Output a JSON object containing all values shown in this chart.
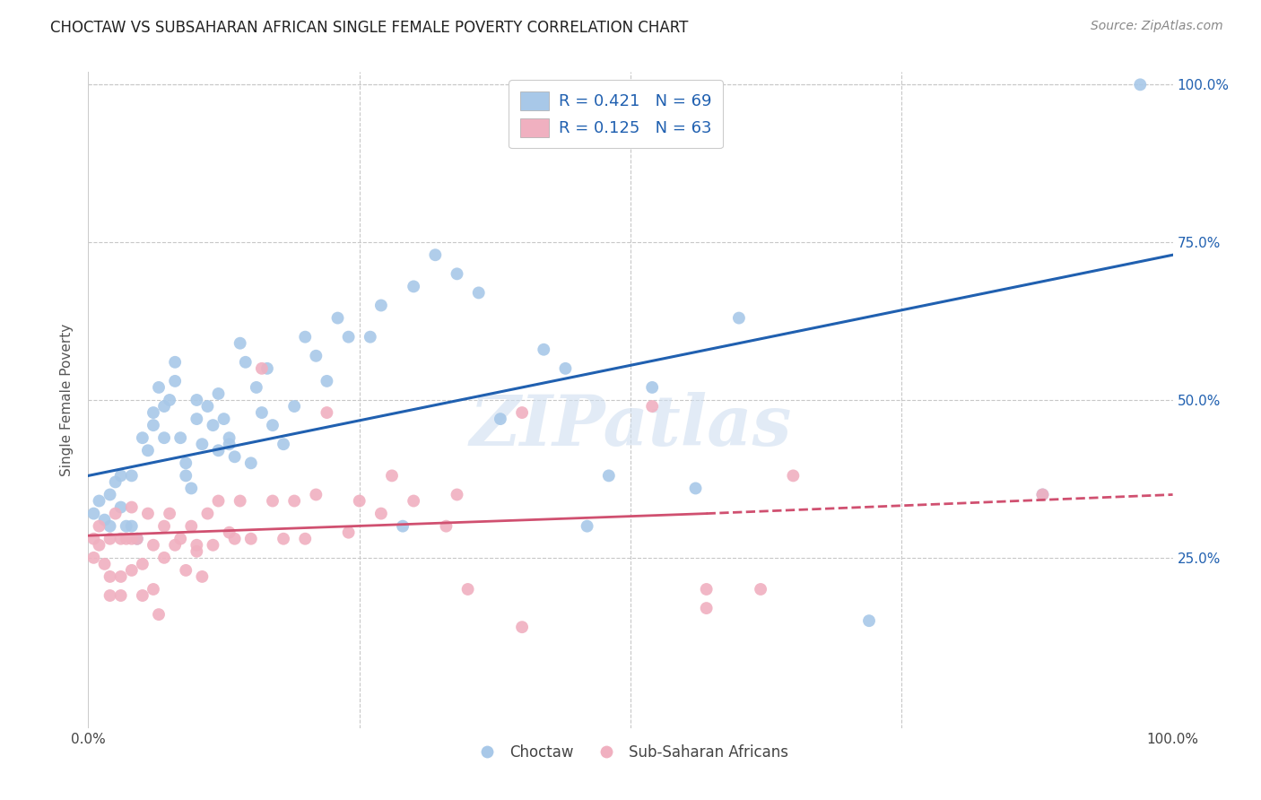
{
  "title": "CHOCTAW VS SUBSAHARAN AFRICAN SINGLE FEMALE POVERTY CORRELATION CHART",
  "source": "Source: ZipAtlas.com",
  "ylabel": "Single Female Poverty",
  "legend_label1": "Choctaw",
  "legend_label2": "Sub-Saharan Africans",
  "R1": 0.421,
  "N1": 69,
  "R2": 0.125,
  "N2": 63,
  "color_blue": "#a8c8e8",
  "color_pink": "#f0b0c0",
  "color_blue_line": "#2060b0",
  "color_pink_line": "#d05070",
  "watermark": "ZIPatlas",
  "blue_scatter_x": [
    0.005,
    0.01,
    0.015,
    0.02,
    0.02,
    0.025,
    0.03,
    0.03,
    0.035,
    0.04,
    0.04,
    0.045,
    0.05,
    0.055,
    0.06,
    0.06,
    0.065,
    0.07,
    0.07,
    0.075,
    0.08,
    0.08,
    0.085,
    0.09,
    0.09,
    0.095,
    0.1,
    0.1,
    0.105,
    0.11,
    0.115,
    0.12,
    0.12,
    0.125,
    0.13,
    0.13,
    0.135,
    0.14,
    0.145,
    0.15,
    0.155,
    0.16,
    0.165,
    0.17,
    0.18,
    0.19,
    0.2,
    0.21,
    0.22,
    0.23,
    0.24,
    0.26,
    0.27,
    0.29,
    0.3,
    0.32,
    0.34,
    0.36,
    0.38,
    0.42,
    0.44,
    0.46,
    0.48,
    0.52,
    0.56,
    0.6,
    0.72,
    0.88,
    0.97
  ],
  "blue_scatter_y": [
    0.32,
    0.34,
    0.31,
    0.35,
    0.3,
    0.37,
    0.38,
    0.33,
    0.3,
    0.38,
    0.3,
    0.28,
    0.44,
    0.42,
    0.48,
    0.46,
    0.52,
    0.49,
    0.44,
    0.5,
    0.56,
    0.53,
    0.44,
    0.4,
    0.38,
    0.36,
    0.5,
    0.47,
    0.43,
    0.49,
    0.46,
    0.42,
    0.51,
    0.47,
    0.43,
    0.44,
    0.41,
    0.59,
    0.56,
    0.4,
    0.52,
    0.48,
    0.55,
    0.46,
    0.43,
    0.49,
    0.6,
    0.57,
    0.53,
    0.63,
    0.6,
    0.6,
    0.65,
    0.3,
    0.68,
    0.73,
    0.7,
    0.67,
    0.47,
    0.58,
    0.55,
    0.3,
    0.38,
    0.52,
    0.36,
    0.63,
    0.15,
    0.35,
    1.0
  ],
  "pink_scatter_x": [
    0.005,
    0.005,
    0.01,
    0.01,
    0.015,
    0.02,
    0.02,
    0.02,
    0.025,
    0.03,
    0.03,
    0.03,
    0.035,
    0.04,
    0.04,
    0.04,
    0.045,
    0.05,
    0.05,
    0.055,
    0.06,
    0.06,
    0.065,
    0.07,
    0.07,
    0.075,
    0.08,
    0.085,
    0.09,
    0.095,
    0.1,
    0.1,
    0.105,
    0.11,
    0.115,
    0.12,
    0.13,
    0.135,
    0.14,
    0.15,
    0.16,
    0.17,
    0.18,
    0.19,
    0.2,
    0.21,
    0.22,
    0.24,
    0.25,
    0.27,
    0.28,
    0.3,
    0.33,
    0.34,
    0.35,
    0.4,
    0.4,
    0.52,
    0.57,
    0.57,
    0.62,
    0.65,
    0.88
  ],
  "pink_scatter_y": [
    0.28,
    0.25,
    0.3,
    0.27,
    0.24,
    0.28,
    0.22,
    0.19,
    0.32,
    0.28,
    0.22,
    0.19,
    0.28,
    0.33,
    0.28,
    0.23,
    0.28,
    0.24,
    0.19,
    0.32,
    0.27,
    0.2,
    0.16,
    0.3,
    0.25,
    0.32,
    0.27,
    0.28,
    0.23,
    0.3,
    0.26,
    0.27,
    0.22,
    0.32,
    0.27,
    0.34,
    0.29,
    0.28,
    0.34,
    0.28,
    0.55,
    0.34,
    0.28,
    0.34,
    0.28,
    0.35,
    0.48,
    0.29,
    0.34,
    0.32,
    0.38,
    0.34,
    0.3,
    0.35,
    0.2,
    0.48,
    0.14,
    0.49,
    0.2,
    0.17,
    0.2,
    0.38,
    0.35
  ],
  "xlim": [
    0.0,
    1.0
  ],
  "ylim": [
    -0.02,
    1.02
  ],
  "xticks": [
    0.0,
    0.25,
    0.5,
    0.75,
    1.0
  ],
  "xtick_labels": [
    "0.0%",
    "",
    "",
    "",
    "100.0%"
  ],
  "ytick_positions": [
    0.25,
    0.5,
    0.75,
    1.0
  ],
  "ytick_labels": [
    "25.0%",
    "50.0%",
    "75.0%",
    "100.0%"
  ],
  "blue_line_x0": 0.0,
  "blue_line_x1": 1.0,
  "blue_line_y0": 0.38,
  "blue_line_y1": 0.73,
  "pink_line_solid_x0": 0.0,
  "pink_line_solid_x1": 0.57,
  "pink_line_solid_y0": 0.285,
  "pink_line_solid_y1": 0.32,
  "pink_line_dash_x0": 0.57,
  "pink_line_dash_x1": 1.0,
  "pink_line_dash_y0": 0.32,
  "pink_line_dash_y1": 0.35,
  "title_fontsize": 12,
  "axis_label_fontsize": 11,
  "tick_fontsize": 11,
  "source_fontsize": 10,
  "background_color": "#ffffff",
  "grid_color": "#c8c8c8"
}
